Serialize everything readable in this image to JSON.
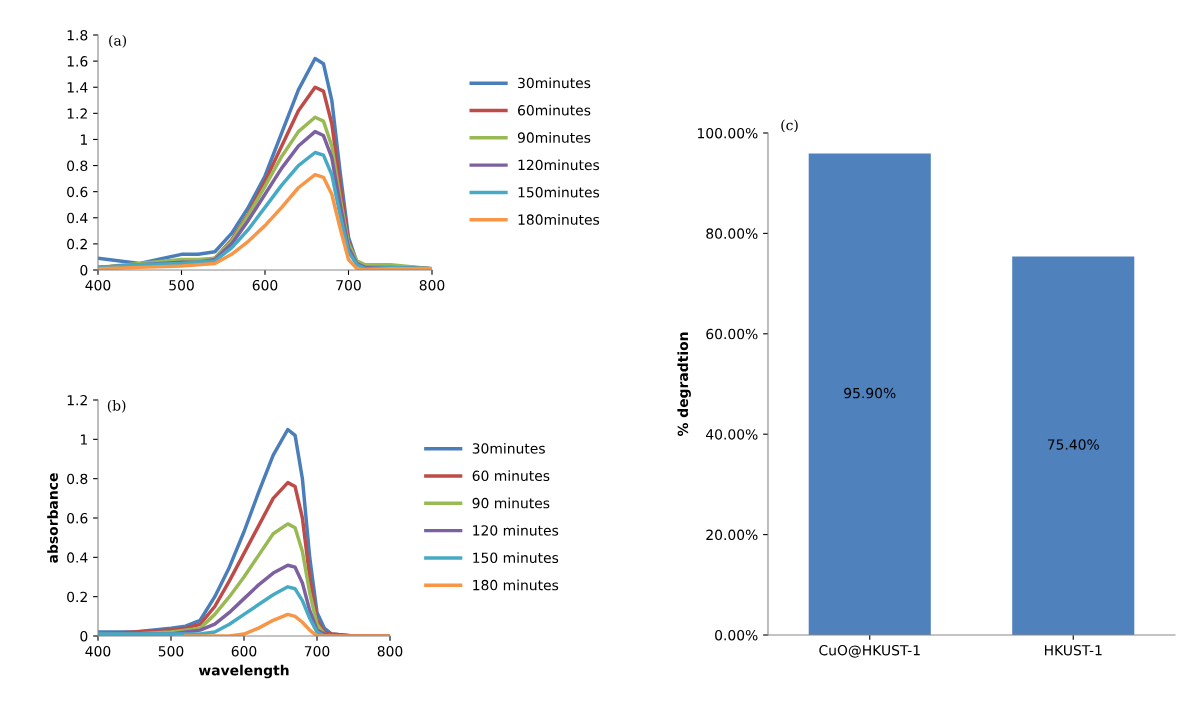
{
  "chart_data": [
    {
      "type": "line",
      "annotations": [
        "(a)"
      ],
      "legend": "right",
      "grid": false,
      "xlim": [
        400,
        800
      ],
      "xticks": [
        400,
        500,
        600,
        700,
        800
      ],
      "ylim": [
        0,
        1.8
      ],
      "yticks": [
        0,
        0.2,
        0.4,
        0.6,
        0.8,
        1,
        1.2,
        1.4,
        1.6,
        1.8
      ],
      "x": [
        400,
        450,
        500,
        520,
        540,
        560,
        580,
        600,
        620,
        640,
        660,
        670,
        680,
        690,
        700,
        710,
        720,
        750,
        800
      ],
      "series": [
        {
          "name": "30minutes",
          "color": "#4a7ebb",
          "values": [
            0.09,
            0.05,
            0.12,
            0.12,
            0.14,
            0.28,
            0.48,
            0.72,
            1.05,
            1.38,
            1.62,
            1.58,
            1.3,
            0.75,
            0.25,
            0.06,
            0.02,
            0.03,
            0.01
          ]
        },
        {
          "name": "60minutes",
          "color": "#be4b48",
          "values": [
            0.02,
            0.04,
            0.07,
            0.07,
            0.09,
            0.23,
            0.43,
            0.68,
            0.95,
            1.22,
            1.4,
            1.37,
            1.12,
            0.65,
            0.22,
            0.05,
            0.02,
            0.03,
            0.01
          ]
        },
        {
          "name": "90minutes",
          "color": "#98b954",
          "values": [
            0.02,
            0.05,
            0.08,
            0.08,
            0.09,
            0.22,
            0.42,
            0.64,
            0.87,
            1.06,
            1.17,
            1.14,
            0.95,
            0.55,
            0.2,
            0.07,
            0.04,
            0.04,
            0.01
          ]
        },
        {
          "name": "120minutes",
          "color": "#7d60a0",
          "values": [
            0.02,
            0.04,
            0.06,
            0.06,
            0.08,
            0.2,
            0.38,
            0.58,
            0.78,
            0.95,
            1.06,
            1.03,
            0.86,
            0.5,
            0.17,
            0.05,
            0.02,
            0.02,
            0.01
          ]
        },
        {
          "name": "150minutes",
          "color": "#46aac5",
          "values": [
            0.02,
            0.04,
            0.05,
            0.06,
            0.07,
            0.17,
            0.31,
            0.48,
            0.65,
            0.8,
            0.9,
            0.88,
            0.73,
            0.42,
            0.14,
            0.04,
            0.01,
            0.02,
            0.01
          ]
        },
        {
          "name": "180minutes",
          "color": "#f79646",
          "values": [
            0.01,
            0.02,
            0.03,
            0.04,
            0.05,
            0.12,
            0.22,
            0.34,
            0.48,
            0.63,
            0.73,
            0.71,
            0.58,
            0.32,
            0.08,
            0.01,
            0.0,
            0.01,
            0.01
          ]
        }
      ]
    },
    {
      "type": "line",
      "annotations": [
        "(b)"
      ],
      "xlabel": "wavelength",
      "ylabel": "absorbance",
      "legend": "right",
      "grid": false,
      "xlim": [
        400,
        800
      ],
      "xticks": [
        400,
        500,
        600,
        700,
        800
      ],
      "ylim": [
        0,
        1.2
      ],
      "yticks": [
        0,
        0.2,
        0.4,
        0.6,
        0.8,
        1,
        1.2
      ],
      "x": [
        400,
        450,
        500,
        520,
        540,
        560,
        580,
        600,
        620,
        640,
        660,
        670,
        680,
        690,
        700,
        710,
        720,
        750,
        800
      ],
      "series": [
        {
          "name": "30minutes",
          "color": "#4a7ebb",
          "values": [
            0.02,
            0.02,
            0.04,
            0.05,
            0.08,
            0.2,
            0.35,
            0.53,
            0.73,
            0.92,
            1.05,
            1.02,
            0.8,
            0.4,
            0.12,
            0.04,
            0.01,
            0.0,
            0.0
          ]
        },
        {
          "name": "60 minutes",
          "color": "#be4b48",
          "values": [
            0.01,
            0.02,
            0.03,
            0.04,
            0.06,
            0.15,
            0.28,
            0.42,
            0.56,
            0.7,
            0.78,
            0.76,
            0.6,
            0.3,
            0.08,
            0.02,
            0.01,
            0.0,
            0.0
          ]
        },
        {
          "name": "90 minutes",
          "color": "#98b954",
          "values": [
            0.01,
            0.01,
            0.02,
            0.03,
            0.04,
            0.11,
            0.2,
            0.3,
            0.41,
            0.52,
            0.57,
            0.55,
            0.43,
            0.22,
            0.06,
            0.01,
            0.0,
            null,
            null
          ]
        },
        {
          "name": "120 minutes",
          "color": "#7d60a0",
          "values": [
            0.01,
            0.01,
            0.01,
            0.02,
            0.03,
            0.06,
            0.12,
            0.19,
            0.26,
            0.32,
            0.36,
            0.35,
            0.27,
            0.13,
            0.03,
            0.01,
            0.0,
            0.0,
            0.0
          ]
        },
        {
          "name": "150 minutes",
          "color": "#46aac5",
          "values": [
            0.01,
            0.01,
            0.01,
            0.01,
            0.01,
            0.02,
            0.06,
            0.11,
            0.16,
            0.21,
            0.25,
            0.24,
            0.18,
            0.09,
            0.02,
            0.0,
            0.0,
            null,
            null
          ]
        },
        {
          "name": "180 minutes",
          "color": "#f79646",
          "values": [
            null,
            null,
            null,
            0.0,
            0.0,
            0.0,
            0.0,
            0.01,
            0.04,
            0.08,
            0.11,
            0.1,
            0.07,
            0.03,
            0.0,
            0.0,
            0.0,
            0.0,
            0.0
          ]
        }
      ]
    },
    {
      "type": "bar",
      "annotations": [
        "(c)"
      ],
      "ylabel": "% degradtion",
      "grid": false,
      "categories": [
        "CuO@HKUST-1",
        "HKUST-1"
      ],
      "values": [
        95.9,
        75.4
      ],
      "color": "#4f81bd",
      "value_labels": [
        "95.90%",
        "75.40%"
      ],
      "ylim": [
        0,
        100
      ],
      "yticks": [
        {
          "value": 0,
          "label": "0.00%"
        },
        {
          "value": 20,
          "label": "20.00%"
        },
        {
          "value": 40,
          "label": "40.00%"
        },
        {
          "value": 60,
          "label": "60.00%"
        },
        {
          "value": 80,
          "label": "80.00%"
        },
        {
          "value": 100,
          "label": "100.00%"
        }
      ]
    }
  ]
}
